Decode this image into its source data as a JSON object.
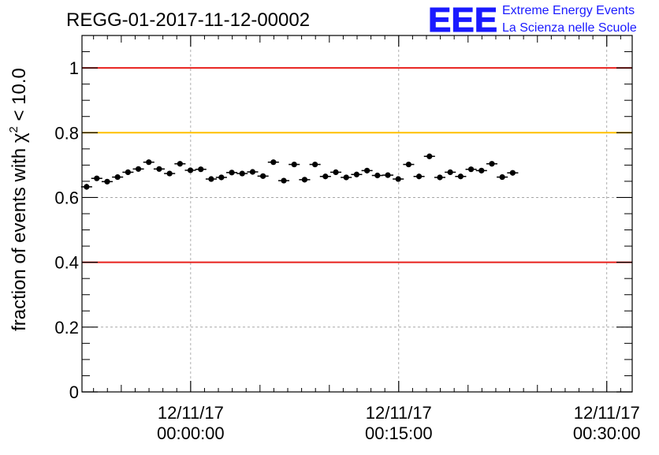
{
  "chart_data": {
    "type": "scatter",
    "title": "REGG-01-2017-11-12-00002",
    "ylabel": {
      "prefix": "fraction of events with ",
      "symbol": "χ",
      "superscript": "2",
      "suffix": " < 10.0"
    },
    "xlim": [
      -470,
      1910
    ],
    "ylim": [
      0,
      1.1
    ],
    "grid": true,
    "x_ticks": [
      {
        "value": 0,
        "date": "12/11/17",
        "time": "00:00:00"
      },
      {
        "value": 900,
        "date": "12/11/17",
        "time": "00:15:00"
      },
      {
        "value": 1800,
        "date": "12/11/17",
        "time": "00:30:00"
      }
    ],
    "y_ticks": [
      {
        "value": 0,
        "label": "0"
      },
      {
        "value": 0.2,
        "label": "0.2"
      },
      {
        "value": 0.4,
        "label": "0.4"
      },
      {
        "value": 0.6,
        "label": "0.6"
      },
      {
        "value": 0.8,
        "label": "0.8"
      },
      {
        "value": 1,
        "label": "1"
      }
    ],
    "reference_lines": [
      {
        "y": 1.0,
        "color": "#e8201c"
      },
      {
        "y": 0.8,
        "color": "#ffc000"
      },
      {
        "y": 0.4,
        "color": "#e8201c"
      }
    ],
    "x_halfwidth": 24,
    "series": [
      {
        "color": "#000000",
        "points": [
          [
            -450,
            0.633,
            0.009
          ],
          [
            -406,
            0.659,
            0.008
          ],
          [
            -361,
            0.649,
            0.008
          ],
          [
            -316,
            0.663,
            0.008
          ],
          [
            -271,
            0.678,
            0.008
          ],
          [
            -226,
            0.688,
            0.008
          ],
          [
            -181,
            0.709,
            0.008
          ],
          [
            -136,
            0.688,
            0.008
          ],
          [
            -91,
            0.674,
            0.008
          ],
          [
            -46,
            0.704,
            0.008
          ],
          [
            -1,
            0.684,
            0.008
          ],
          [
            44,
            0.687,
            0.008
          ],
          [
            89,
            0.657,
            0.008
          ],
          [
            133,
            0.662,
            0.008
          ],
          [
            178,
            0.677,
            0.008
          ],
          [
            223,
            0.674,
            0.008
          ],
          [
            268,
            0.679,
            0.008
          ],
          [
            313,
            0.666,
            0.008
          ],
          [
            358,
            0.709,
            0.008
          ],
          [
            403,
            0.652,
            0.008
          ],
          [
            448,
            0.702,
            0.008
          ],
          [
            493,
            0.655,
            0.008
          ],
          [
            538,
            0.702,
            0.008
          ],
          [
            583,
            0.665,
            0.008
          ],
          [
            628,
            0.678,
            0.008
          ],
          [
            673,
            0.662,
            0.008
          ],
          [
            718,
            0.671,
            0.008
          ],
          [
            763,
            0.683,
            0.008
          ],
          [
            808,
            0.668,
            0.008
          ],
          [
            853,
            0.669,
            0.008
          ],
          [
            898,
            0.657,
            0.008
          ],
          [
            943,
            0.702,
            0.008
          ],
          [
            988,
            0.665,
            0.008
          ],
          [
            1033,
            0.727,
            0.008
          ],
          [
            1078,
            0.662,
            0.008
          ],
          [
            1123,
            0.678,
            0.008
          ],
          [
            1168,
            0.665,
            0.008
          ],
          [
            1213,
            0.687,
            0.008
          ],
          [
            1258,
            0.683,
            0.008
          ],
          [
            1303,
            0.704,
            0.008
          ],
          [
            1348,
            0.663,
            0.008
          ],
          [
            1393,
            0.676,
            0.008
          ]
        ]
      }
    ]
  },
  "logo": {
    "mark": "EEE",
    "line1": "Extreme Energy Events",
    "line2": "La Scienza nelle Scuole",
    "color": "#1a1aff"
  }
}
